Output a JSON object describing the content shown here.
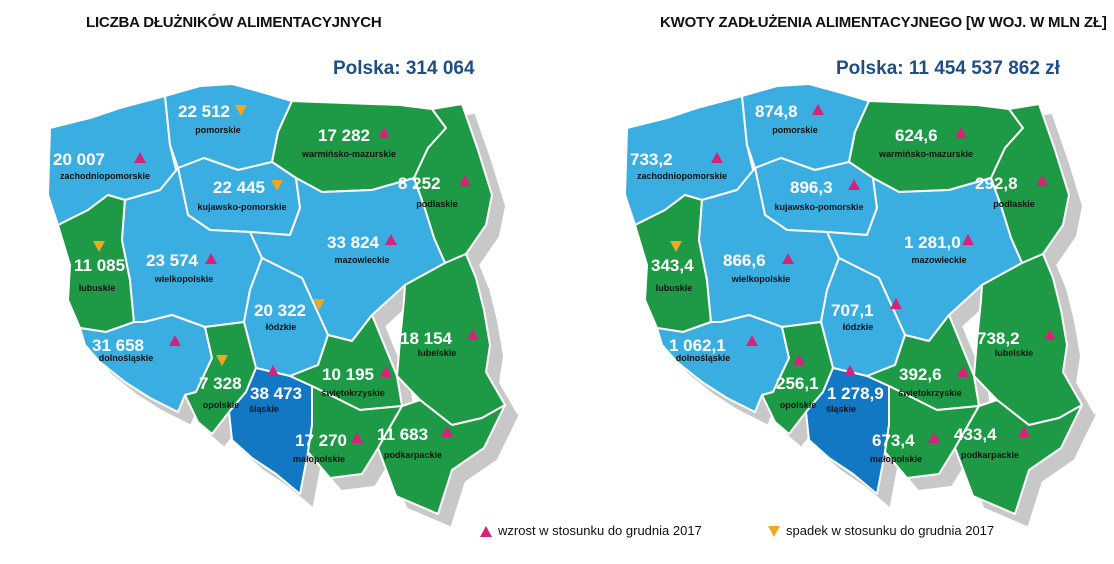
{
  "maps": [
    {
      "title": "LICZBA DŁUŻNIKÓW ALIMENTACYJNYCH",
      "total": "Polska: 314 064",
      "regions": [
        {
          "name": "pomorskie",
          "value": "22 512",
          "trend": "down"
        },
        {
          "name": "zachodniopomorskie",
          "value": "20 007",
          "trend": "up"
        },
        {
          "name": "warmińsko-mazurskie",
          "value": "17 282",
          "trend": "up"
        },
        {
          "name": "podlaskie",
          "value": "8 252",
          "trend": "up"
        },
        {
          "name": "kujawsko-pomorskie",
          "value": "22 445",
          "trend": "down"
        },
        {
          "name": "lubuskie",
          "value": "11 085",
          "trend": "down"
        },
        {
          "name": "wielkopolskie",
          "value": "23 574",
          "trend": "up"
        },
        {
          "name": "mazowieckie",
          "value": "33 824",
          "trend": "up"
        },
        {
          "name": "łódzkie",
          "value": "20 322",
          "trend": "down"
        },
        {
          "name": "dolnośląskie",
          "value": "31 658",
          "trend": "up"
        },
        {
          "name": "lubelskie",
          "value": "18 154",
          "trend": "up"
        },
        {
          "name": "opolskie",
          "value": "7 328",
          "trend": "down"
        },
        {
          "name": "śląskie",
          "value": "38 473",
          "trend": "up"
        },
        {
          "name": "świętokrzyskie",
          "value": "10 195",
          "trend": "up"
        },
        {
          "name": "małopolskie",
          "value": "17 270",
          "trend": "up"
        },
        {
          "name": "podkarpackie",
          "value": "11 683",
          "trend": "up"
        }
      ]
    },
    {
      "title": "KWOTY ZADŁUŻENIA ALIMENTACYJNEGO [W WOJ. W MLN ZŁ]",
      "total": "Polska: 11 454 537 862 zł",
      "regions": [
        {
          "name": "pomorskie",
          "value": "874,8",
          "trend": "up"
        },
        {
          "name": "zachodniopomorskie",
          "value": "733,2",
          "trend": "up"
        },
        {
          "name": "warmińsko-mazurskie",
          "value": "624,6",
          "trend": "up"
        },
        {
          "name": "podlaskie",
          "value": "292,8",
          "trend": "up"
        },
        {
          "name": "kujawsko-pomorskie",
          "value": "896,3",
          "trend": "up"
        },
        {
          "name": "lubuskie",
          "value": "343,4",
          "trend": "down"
        },
        {
          "name": "wielkopolskie",
          "value": "866,6",
          "trend": "up"
        },
        {
          "name": "mazowieckie",
          "value": "1 281,0",
          "trend": "up"
        },
        {
          "name": "łódzkie",
          "value": "707,1",
          "trend": "up"
        },
        {
          "name": "dolnośląskie",
          "value": "1 062,1",
          "trend": "up"
        },
        {
          "name": "lubelskie",
          "value": "738,2",
          "trend": "up"
        },
        {
          "name": "opolskie",
          "value": "256,1",
          "trend": "up"
        },
        {
          "name": "śląskie",
          "value": "1 278,9",
          "trend": "up"
        },
        {
          "name": "świętokrzyskie",
          "value": "392,6",
          "trend": "up"
        },
        {
          "name": "małopolskie",
          "value": "673,4",
          "trend": "up"
        },
        {
          "name": "podkarpackie",
          "value": "433,4",
          "trend": "up"
        }
      ]
    }
  ],
  "region_colors": {
    "pomorskie": "#3aaee0",
    "zachodniopomorskie": "#3aaee0",
    "warmińsko-mazurskie": "#1e9a46",
    "podlaskie": "#1e9a46",
    "kujawsko-pomorskie": "#3aaee0",
    "lubuskie": "#1e9a46",
    "wielkopolskie": "#3aaee0",
    "mazowieckie": "#3aaee0",
    "łódzkie": "#3aaee0",
    "dolnośląskie": "#3aaee0",
    "lubelskie": "#1e9a46",
    "opolskie": "#1e9a46",
    "śląskie": "#1378c4",
    "świętokrzyskie": "#1e9a46",
    "małopolskie": "#1e9a46",
    "podkarpackie": "#1e9a46"
  },
  "colors": {
    "up": "#d6237a",
    "down": "#f0a81e",
    "shadow": "#c8c8c8",
    "border": "#ffffff"
  },
  "legend": {
    "up": "wzrost w stosunku do grudnia 2017",
    "down": "spadek w stosunku do grudnia 2017"
  }
}
